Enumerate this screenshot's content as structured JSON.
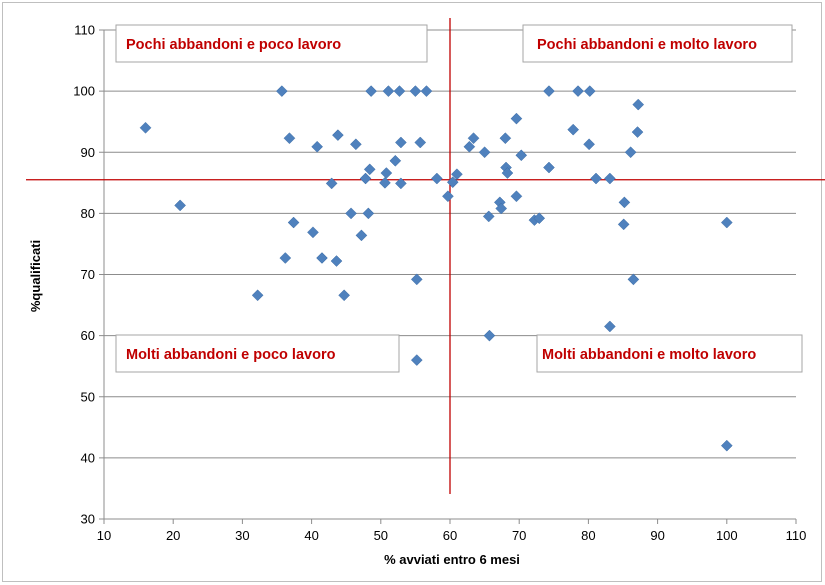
{
  "chart_data": {
    "type": "scatter",
    "title": "",
    "xlabel": "% avviati entro 6 mesi",
    "ylabel": "%qualificati",
    "xlim": [
      10,
      110
    ],
    "ylim": [
      30,
      110
    ],
    "x_ticks": [
      "10",
      "20",
      "30",
      "40",
      "50",
      "60",
      "70",
      "80",
      "90",
      "100",
      "110"
    ],
    "y_ticks": [
      "30",
      "40",
      "50",
      "60",
      "70",
      "80",
      "90",
      "100",
      "110"
    ],
    "grid": "horizontal",
    "marker": "diamond",
    "marker_color": "#4f81bd",
    "reference_lines": {
      "x": 60,
      "y": 85.5,
      "color": "#c00000"
    },
    "quadrant_labels": {
      "top_left": "Pochi abbandoni e poco lavoro",
      "top_right": "Pochi abbandoni e molto lavoro",
      "bottom_left": "Molti abbandoni e poco lavoro",
      "bottom_right": "Molti abbandoni e molto lavoro"
    },
    "points": [
      {
        "x": 16,
        "y": 94
      },
      {
        "x": 21,
        "y": 81.3
      },
      {
        "x": 32.2,
        "y": 66.6
      },
      {
        "x": 35.7,
        "y": 100
      },
      {
        "x": 36.2,
        "y": 72.7
      },
      {
        "x": 36.8,
        "y": 92.3
      },
      {
        "x": 37.4,
        "y": 78.5
      },
      {
        "x": 40.2,
        "y": 76.9
      },
      {
        "x": 40.8,
        "y": 90.9
      },
      {
        "x": 41.5,
        "y": 72.7
      },
      {
        "x": 42.9,
        "y": 84.9
      },
      {
        "x": 43.6,
        "y": 72.2
      },
      {
        "x": 43.8,
        "y": 92.8
      },
      {
        "x": 44.7,
        "y": 66.6
      },
      {
        "x": 45.7,
        "y": 80
      },
      {
        "x": 46.4,
        "y": 91.3
      },
      {
        "x": 47.2,
        "y": 76.4
      },
      {
        "x": 47.8,
        "y": 85.7
      },
      {
        "x": 48.2,
        "y": 80
      },
      {
        "x": 48.4,
        "y": 87.2
      },
      {
        "x": 48.6,
        "y": 100
      },
      {
        "x": 50.6,
        "y": 85
      },
      {
        "x": 50.8,
        "y": 86.6
      },
      {
        "x": 51.1,
        "y": 100
      },
      {
        "x": 52.1,
        "y": 88.6
      },
      {
        "x": 52.7,
        "y": 100
      },
      {
        "x": 52.9,
        "y": 91.6
      },
      {
        "x": 52.9,
        "y": 84.9
      },
      {
        "x": 55,
        "y": 100
      },
      {
        "x": 55.2,
        "y": 69.2
      },
      {
        "x": 55.2,
        "y": 56
      },
      {
        "x": 55.7,
        "y": 91.6
      },
      {
        "x": 56.6,
        "y": 100
      },
      {
        "x": 58.1,
        "y": 85.7
      },
      {
        "x": 59.7,
        "y": 82.8
      },
      {
        "x": 60.4,
        "y": 85.1
      },
      {
        "x": 61,
        "y": 86.4
      },
      {
        "x": 62.8,
        "y": 90.9
      },
      {
        "x": 63.4,
        "y": 92.3
      },
      {
        "x": 65,
        "y": 90
      },
      {
        "x": 65.6,
        "y": 79.5
      },
      {
        "x": 65.7,
        "y": 60
      },
      {
        "x": 67.2,
        "y": 81.8
      },
      {
        "x": 67.4,
        "y": 80.8
      },
      {
        "x": 68,
        "y": 92.3
      },
      {
        "x": 68.1,
        "y": 87.5
      },
      {
        "x": 68.3,
        "y": 86.6
      },
      {
        "x": 69.6,
        "y": 95.5
      },
      {
        "x": 69.6,
        "y": 82.8
      },
      {
        "x": 70.3,
        "y": 89.5
      },
      {
        "x": 72.2,
        "y": 78.9
      },
      {
        "x": 72.9,
        "y": 79.2
      },
      {
        "x": 74.3,
        "y": 100
      },
      {
        "x": 74.3,
        "y": 87.5
      },
      {
        "x": 77.8,
        "y": 93.7
      },
      {
        "x": 78.5,
        "y": 100
      },
      {
        "x": 80.1,
        "y": 91.3
      },
      {
        "x": 80.2,
        "y": 100
      },
      {
        "x": 81.1,
        "y": 85.7
      },
      {
        "x": 83.1,
        "y": 85.7
      },
      {
        "x": 83.1,
        "y": 61.5
      },
      {
        "x": 85.1,
        "y": 78.2
      },
      {
        "x": 85.2,
        "y": 81.8
      },
      {
        "x": 86.1,
        "y": 90
      },
      {
        "x": 86.5,
        "y": 69.2
      },
      {
        "x": 87.1,
        "y": 93.3
      },
      {
        "x": 87.2,
        "y": 97.8
      },
      {
        "x": 100,
        "y": 78.5
      },
      {
        "x": 100,
        "y": 42
      }
    ]
  }
}
